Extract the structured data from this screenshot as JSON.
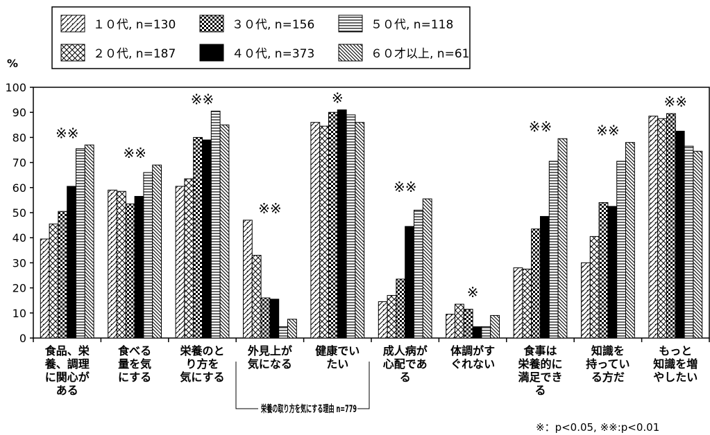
{
  "chart_data": {
    "type": "bar",
    "ylabel": "%",
    "ylim": [
      0,
      100
    ],
    "yticks": [
      "0",
      "10",
      "20",
      "30",
      "40",
      "50",
      "60",
      "70",
      "80",
      "90",
      "100"
    ],
    "grid": false,
    "legend_position": "top",
    "categories": [
      [
        "食品、栄",
        "養、調理",
        "に関心が",
        "ある"
      ],
      [
        "食べる",
        "量を気",
        "にする"
      ],
      [
        "栄養のと",
        "り方を",
        "気にする"
      ],
      [
        "外見上が",
        "気になる"
      ],
      [
        "健康でい",
        "たい"
      ],
      [
        "成人病が",
        "心配であ",
        "る"
      ],
      [
        "体調がす",
        "ぐれない"
      ],
      [
        "食事は",
        "栄養的に",
        "満足でき",
        "る"
      ],
      [
        "知識を",
        "持ってい",
        "る方だ"
      ],
      [
        "もっと",
        "知識を増",
        "やしたい"
      ]
    ],
    "series": [
      {
        "name": "１０代, n=130",
        "pattern": "diag-forward",
        "values": [
          39.5,
          59,
          60.5,
          47,
          86,
          14.5,
          9.5,
          28,
          30,
          88.5
        ]
      },
      {
        "name": "２０代, n=187",
        "pattern": "crosshatch",
        "values": [
          45.5,
          58.5,
          63.5,
          33,
          84.5,
          17,
          13.5,
          27.5,
          40.5,
          87.5
        ]
      },
      {
        "name": "３０代, n=156",
        "pattern": "checker",
        "values": [
          50.5,
          53.5,
          80,
          16,
          90,
          23.5,
          11.5,
          43.5,
          54,
          89.5
        ]
      },
      {
        "name": "４０代, n=373",
        "pattern": "solid",
        "values": [
          60.5,
          56.5,
          79,
          15.5,
          91,
          44.5,
          4.5,
          48.5,
          52.5,
          82.5
        ]
      },
      {
        "name": "５０代, n=118",
        "pattern": "horizontal",
        "values": [
          75.5,
          66,
          90.5,
          4.5,
          89,
          51,
          4.5,
          70.5,
          70.5,
          76.5
        ]
      },
      {
        "name": "６０才以上, n=61",
        "pattern": "diag-back",
        "values": [
          77,
          69,
          85,
          7.5,
          86,
          55.5,
          9,
          79.5,
          78,
          74.5
        ]
      }
    ],
    "significance": [
      "※※",
      "※※",
      "※※",
      "※※",
      "※",
      "※※",
      "※",
      "※※",
      "※※",
      "※※"
    ],
    "bracket_label": "栄養の取り方を気にする理由 n=779",
    "footnote": "※：p<0.05, ※※:p<0.01"
  }
}
